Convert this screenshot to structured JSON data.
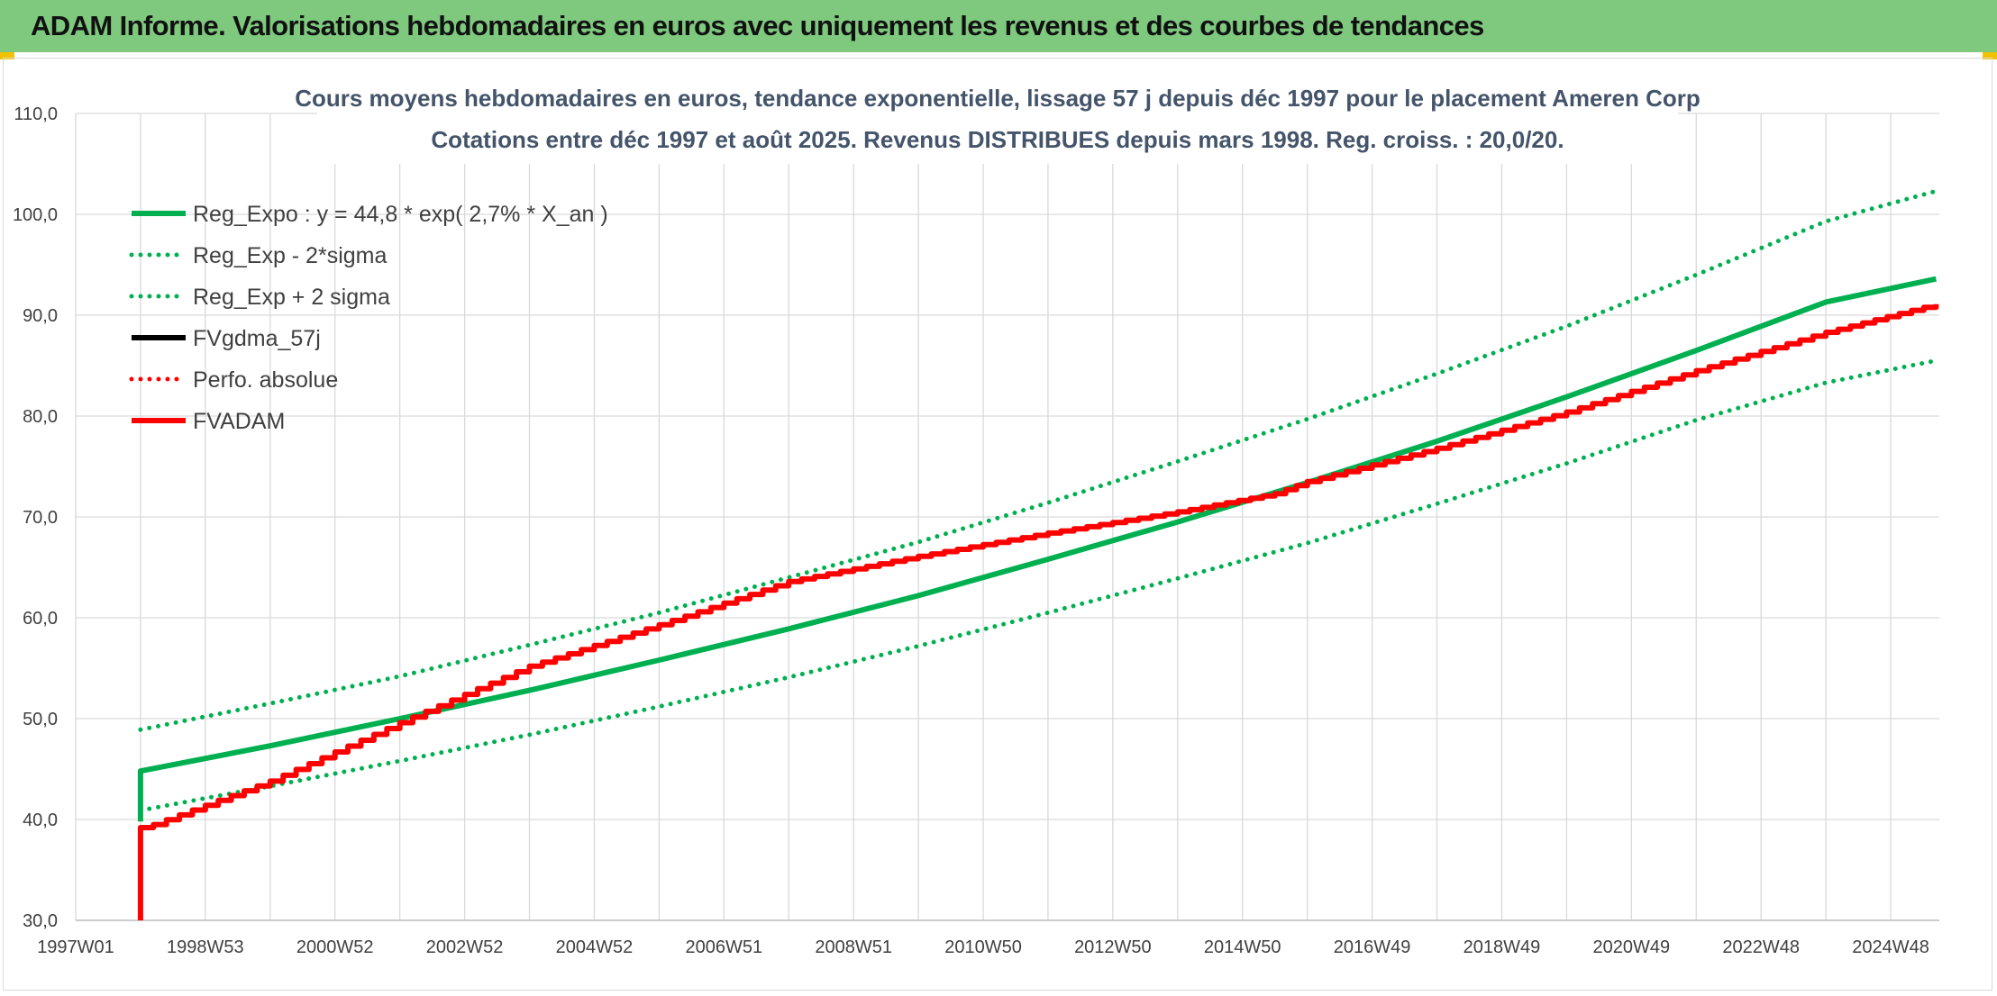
{
  "banner": {
    "title": "ADAM Informe. Valorisations hebdomadaires en euros avec uniquement les revenus et des courbes de tendances"
  },
  "chart_data": {
    "type": "line",
    "title_lines": [
      "Cours moyens hebdomadaires en euros, tendance exponentielle, lissage 57 j depuis déc 1997 pour le placement Ameren Corp",
      "Cotations entre déc 1997 et août 2025. Revenus DISTRIBUES depuis mars 1998. Reg. croiss. : 20,0/20."
    ],
    "xlabel": "",
    "ylabel": "",
    "ylim": [
      30,
      110
    ],
    "yticks": [
      "30,0",
      "40,0",
      "50,0",
      "60,0",
      "70,0",
      "80,0",
      "90,0",
      "100,0",
      "110,0"
    ],
    "xlim": [
      1997.0,
      2025.75
    ],
    "x_tick_labels": [
      "1997W01",
      "1998W53",
      "2000W52",
      "2002W52",
      "2004W52",
      "2006W51",
      "2008W51",
      "2010W50",
      "2012W50",
      "2014W50",
      "2016W49",
      "2018W49",
      "2020W49",
      "2022W48",
      "2024W48"
    ],
    "x_tick_years": [
      1997.0,
      1999.0,
      2001.0,
      2003.0,
      2005.0,
      2007.0,
      2009.0,
      2011.0,
      2013.0,
      2015.0,
      2017.0,
      2019.0,
      2021.0,
      2023.0,
      2025.0
    ],
    "grid": true,
    "legend_position": "top-left",
    "series": [
      {
        "name": "Reg_Expo : y = 44,8 * exp( 2,7% *  X_an )",
        "color": "#00b050",
        "style": "solid",
        "x": [
          1998.0,
          1998.0,
          2000.0,
          2002.0,
          2004.0,
          2006.0,
          2008.0,
          2010.0,
          2012.0,
          2014.0,
          2016.0,
          2018.0,
          2020.0,
          2022.0,
          2024.0,
          2025.7
        ],
        "y": [
          39.8,
          44.8,
          47.3,
          50.0,
          52.8,
          55.8,
          58.9,
          62.2,
          65.8,
          69.5,
          73.4,
          77.5,
          81.9,
          86.5,
          91.3,
          93.6
        ]
      },
      {
        "name": "Reg_Exp - 2*sigma",
        "color": "#00b050",
        "style": "dotted",
        "x": [
          1998.0,
          2000.0,
          2002.0,
          2004.0,
          2006.0,
          2008.0,
          2010.0,
          2012.0,
          2014.0,
          2016.0,
          2018.0,
          2020.0,
          2022.0,
          2024.0,
          2025.7
        ],
        "y": [
          40.9,
          43.3,
          45.8,
          48.4,
          51.2,
          54.1,
          57.2,
          60.5,
          63.9,
          67.4,
          71.3,
          75.3,
          79.6,
          83.3,
          85.5
        ]
      },
      {
        "name": "Reg_Exp + 2 sigma",
        "color": "#00b050",
        "style": "dotted",
        "x": [
          1998.0,
          2000.0,
          2002.0,
          2004.0,
          2006.0,
          2008.0,
          2010.0,
          2012.0,
          2014.0,
          2016.0,
          2018.0,
          2020.0,
          2022.0,
          2024.0,
          2025.7
        ],
        "y": [
          48.9,
          51.5,
          54.2,
          57.3,
          60.5,
          64.0,
          67.5,
          71.4,
          75.5,
          79.7,
          84.2,
          88.9,
          94.0,
          99.3,
          102.3
        ]
      },
      {
        "name": "FVgdma_57j",
        "color": "#000000",
        "style": "solid",
        "x": [],
        "y": []
      },
      {
        "name": "Perfo. absolue",
        "color": "#ff0000",
        "style": "dotted",
        "x": [],
        "y": []
      },
      {
        "name": "FVADAM",
        "color": "#ff0000",
        "style": "solid-step",
        "x": [
          1998.0,
          1998.0,
          1998.2,
          2000.0,
          2002.0,
          2004.0,
          2006.0,
          2008.0,
          2010.0,
          2012.0,
          2014.0,
          2015.5,
          2016.0,
          2018.0,
          2020.0,
          2022.0,
          2024.0,
          2025.7
        ],
        "y": [
          30.0,
          39.2,
          39.5,
          43.8,
          49.6,
          55.2,
          59.3,
          63.6,
          66.1,
          68.4,
          70.5,
          72.3,
          73.5,
          76.8,
          80.4,
          84.5,
          88.3,
          91.1
        ]
      }
    ]
  }
}
